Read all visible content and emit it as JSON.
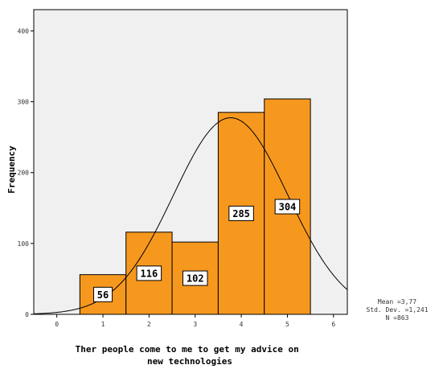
{
  "chart_data": {
    "type": "bar",
    "title": "",
    "xlabel": "Ther people come to me to get my advice on new technologies",
    "xlabel_lines": [
      "Ther people come to me to get my advice on",
      "new technologies"
    ],
    "ylabel": "Frequency",
    "categories": [
      "1",
      "2",
      "3",
      "4",
      "5"
    ],
    "values": [
      56,
      116,
      102,
      285,
      304
    ],
    "data_labels": [
      "56",
      "116",
      "102",
      "285",
      "304"
    ],
    "x_ticks": [
      "0",
      "1",
      "2",
      "3",
      "4",
      "5",
      "6"
    ],
    "y_ticks": [
      "0",
      "100",
      "200",
      "300",
      "400"
    ],
    "xlim": [
      -0.5,
      6.3
    ],
    "ylim": [
      0,
      430
    ],
    "grid": false,
    "normal_curve": {
      "mean": 3.77,
      "std_dev": 1.241,
      "n": 863
    },
    "stats": {
      "mean": "Mean =3,77",
      "std_dev": "Std. Dev. =1,241",
      "n": "N =863"
    },
    "colors": {
      "bar_fill": "#F7981E",
      "bar_stroke": "#000000",
      "plot_background": "#F0F0F0",
      "curve": "#000000"
    }
  }
}
